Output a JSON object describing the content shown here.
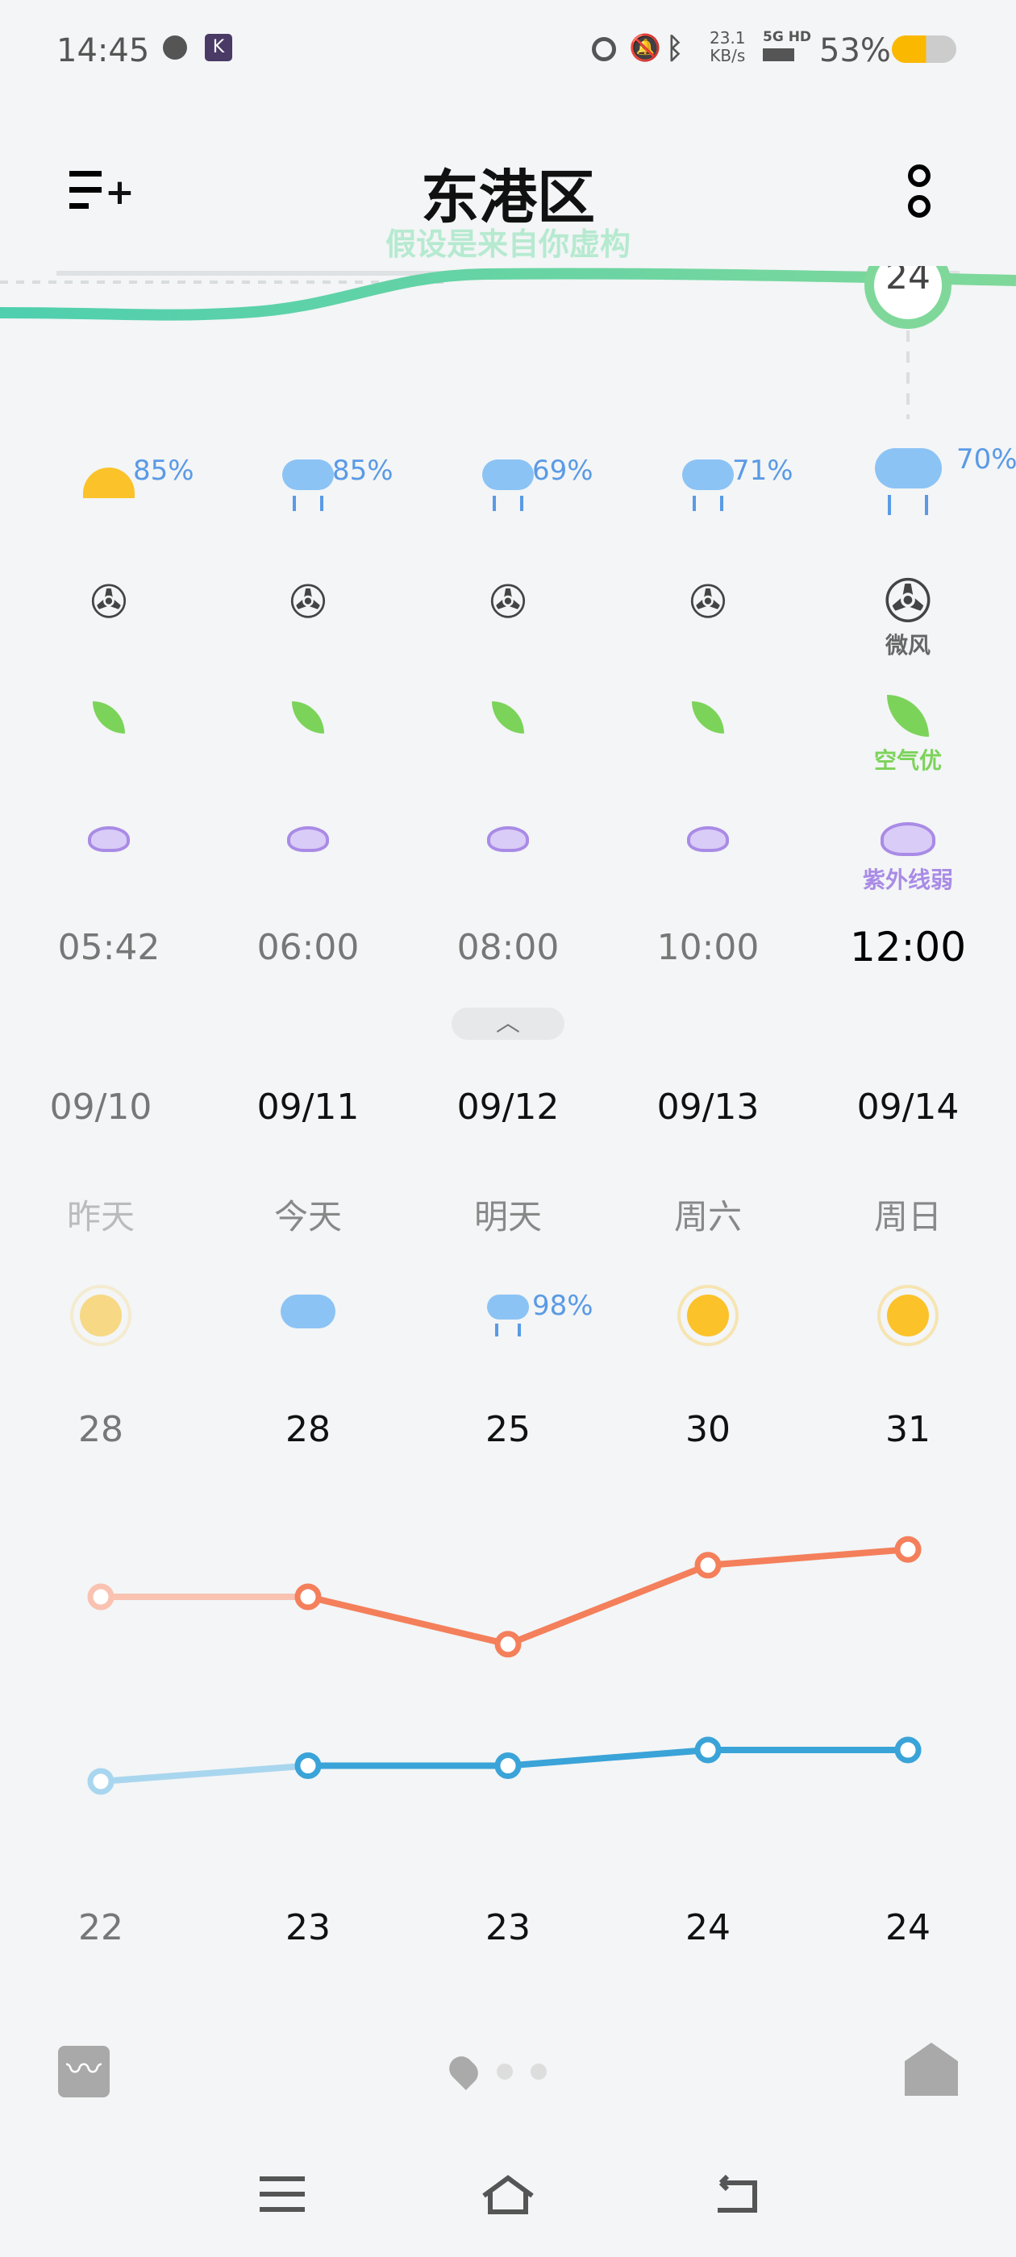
{
  "status_bar": {
    "time": "14:45",
    "net_speed": "23.1",
    "net_unit": "KB/s",
    "network": "5G HD",
    "battery": "53%",
    "battery_level": 53
  },
  "header": {
    "title": "东港区",
    "subtitle": "假设是来自你虚构",
    "current_temp": "24"
  },
  "hourly": [
    {
      "time": "05:42",
      "precip": "85%",
      "icon": "sunrise-icon"
    },
    {
      "time": "06:00",
      "precip": "85%",
      "icon": "rain-icon"
    },
    {
      "time": "08:00",
      "precip": "69%",
      "icon": "rain-icon"
    },
    {
      "time": "10:00",
      "precip": "71%",
      "icon": "rain-icon"
    },
    {
      "time": "12:00",
      "precip": "70%",
      "icon": "rain-icon",
      "wind": "微风",
      "air": "空气优",
      "uv": "紫外线弱"
    }
  ],
  "daily": [
    {
      "date": "09/10",
      "day": "昨天",
      "icon": "sun-icon",
      "precip": "",
      "high": "28",
      "low": "22"
    },
    {
      "date": "09/11",
      "day": "今天",
      "icon": "cloud-icon",
      "precip": "",
      "high": "28",
      "low": "23"
    },
    {
      "date": "09/12",
      "day": "明天",
      "icon": "rain-icon",
      "precip": "98%",
      "high": "25",
      "low": "23"
    },
    {
      "date": "09/13",
      "day": "周六",
      "icon": "sun-icon",
      "precip": "",
      "high": "30",
      "low": "24"
    },
    {
      "date": "09/14",
      "day": "周日",
      "icon": "sun-icon",
      "precip": "",
      "high": "31",
      "low": "24"
    }
  ],
  "chart_data": {
    "type": "line",
    "categories": [
      "09/10",
      "09/11",
      "09/12",
      "09/13",
      "09/14"
    ],
    "series": [
      {
        "values": [
          28,
          28,
          25,
          30,
          31
        ],
        "color": "#f47f5b"
      },
      {
        "values": [
          22,
          23,
          23,
          24,
          24
        ],
        "color": "#3aa3d8"
      }
    ]
  },
  "colors": {
    "accent": "#7fd89a",
    "precip": "#5a9ae6",
    "wind": "#444444",
    "air": "#7cd35a",
    "uv": "#a98be6"
  }
}
